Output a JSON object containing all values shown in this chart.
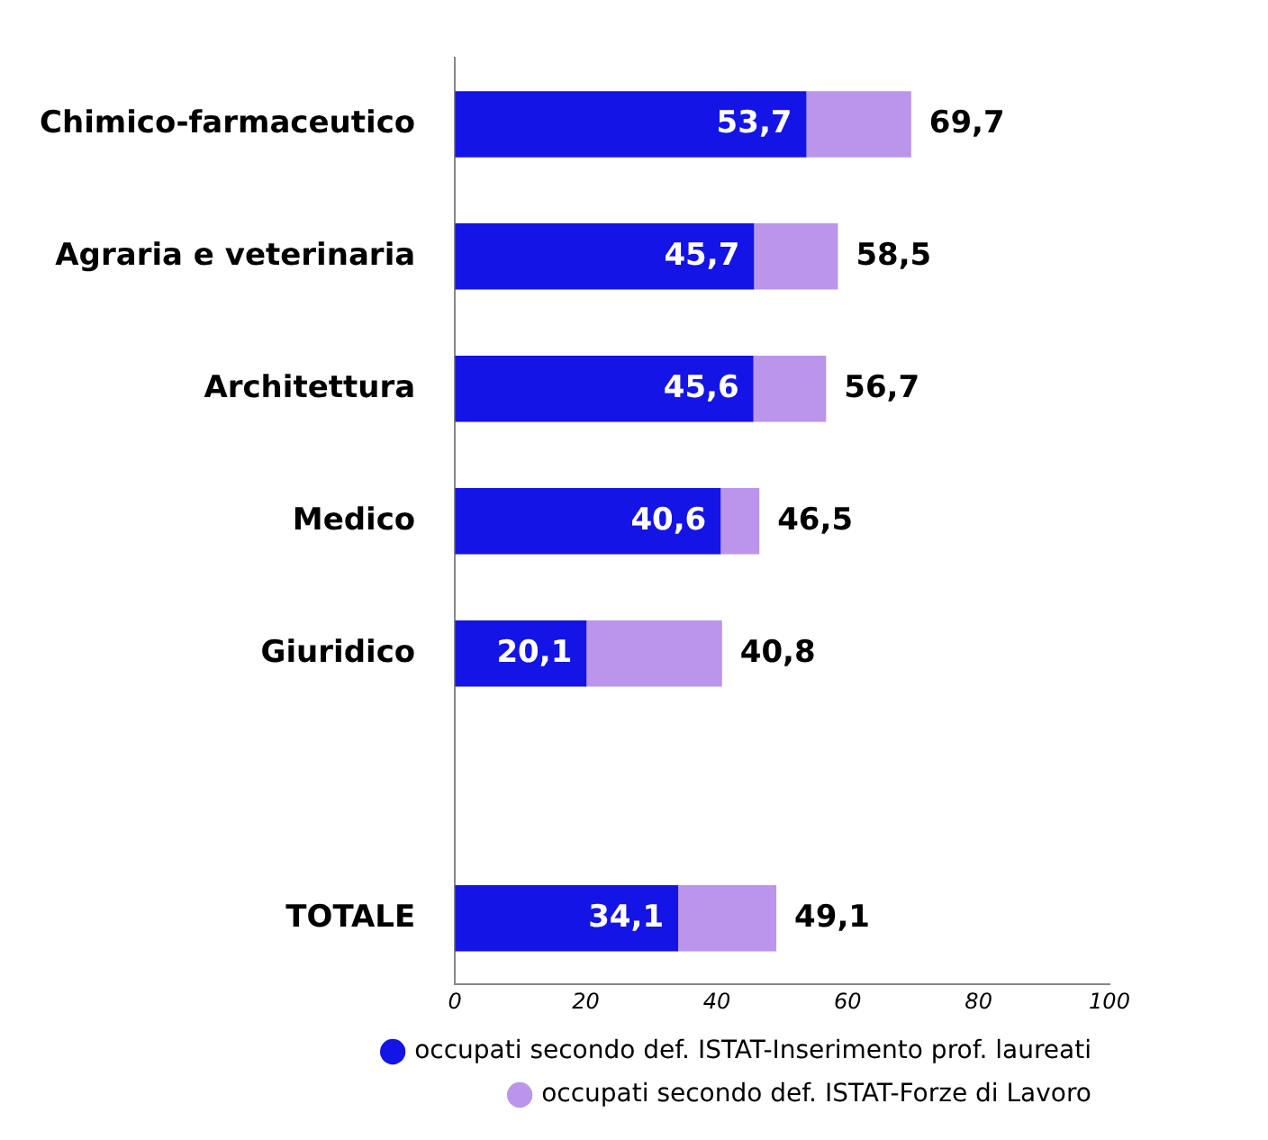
{
  "chart_data": {
    "type": "bar",
    "orientation": "horizontal",
    "stacked": true,
    "categories": [
      "Chimico-farmaceutico",
      "Agraria e veterinaria",
      "Architettura",
      "Medico",
      "Giuridico",
      null,
      "TOTALE"
    ],
    "series": [
      {
        "name": "occupati secondo def. ISTAT-Inserimento prof. laureati",
        "color": "#1414e6",
        "values": [
          53.7,
          45.7,
          45.6,
          40.6,
          20.1,
          null,
          34.1
        ],
        "value_labels": [
          "53,7",
          "45,7",
          "45,6",
          "40,6",
          "20,1",
          null,
          "34,1"
        ]
      },
      {
        "name": "occupati secondo def. ISTAT-Forze di Lavoro",
        "color": "#bb94ec",
        "values": [
          16.0,
          12.8,
          11.1,
          5.9,
          20.7,
          null,
          15.0
        ]
      }
    ],
    "totals": [
      "69,7",
      "58,5",
      "56,7",
      "46,5",
      "40,8",
      null,
      "49,1"
    ],
    "xlim": [
      0,
      100
    ],
    "xticks": [
      0,
      20,
      40,
      60,
      80,
      100
    ],
    "legend": "bottom"
  }
}
